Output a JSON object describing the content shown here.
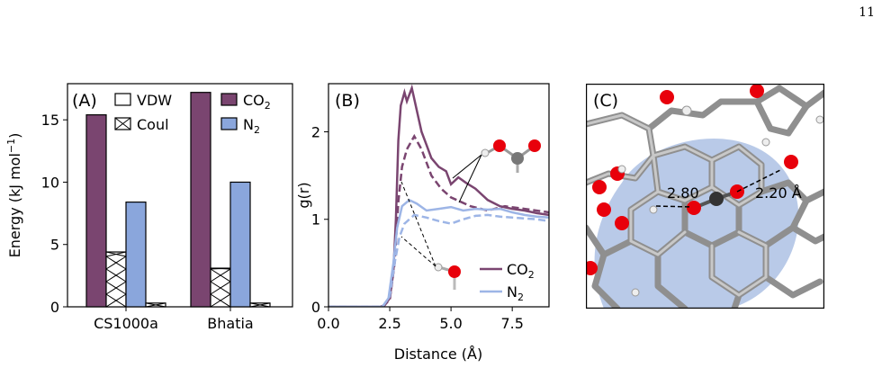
{
  "page_number": "11",
  "colors": {
    "co2": "#7a4570",
    "n2": "#8aa6dc",
    "co2_line": "#7a4570",
    "n2_line": "#9db5e6"
  },
  "panel_a": {
    "label": "(A)",
    "legend": {
      "vdw": "VDW",
      "coul": "Coul",
      "co2": "CO",
      "co2_sub": "2",
      "n2": "N",
      "n2_sub": "2"
    }
  },
  "panel_b": {
    "label": "(B)",
    "legend": {
      "co2": "CO",
      "co2_sub": "2",
      "n2": "N",
      "n2_sub": "2"
    }
  },
  "panel_c": {
    "label": "(C)",
    "dist1": "2.80",
    "dist2": "2.20 Å"
  },
  "chart_data": [
    {
      "type": "bar",
      "categories": [
        "CS1000a",
        "Bhatia"
      ],
      "series": [
        {
          "name": "CO2 VDW",
          "values": [
            15.4,
            17.2
          ]
        },
        {
          "name": "CO2 Coul",
          "values": [
            4.4,
            3.1
          ]
        },
        {
          "name": "N2 VDW",
          "values": [
            8.4,
            10.0
          ]
        },
        {
          "name": "N2 Coul",
          "values": [
            0.3,
            0.3
          ]
        }
      ],
      "ylabel": "Energy (kJ mol",
      "ylabel_sup": "−1",
      "ylabel_end": ")",
      "ylim": [
        0,
        17.9
      ],
      "yticks": [
        0,
        5,
        10,
        15
      ]
    },
    {
      "type": "line",
      "xlabel": "Distance (Å)",
      "ylabel": "g(r)",
      "xlim": [
        0,
        9
      ],
      "ylim": [
        0,
        2.55
      ],
      "xticks": [
        "0.0",
        "2.5",
        "5.0",
        "7.5"
      ],
      "xtick_values": [
        0,
        2.5,
        5,
        7.5
      ],
      "yticks": [
        0,
        1,
        2
      ],
      "series": [
        {
          "name": "CO2 solid",
          "style": "solid",
          "points": [
            [
              0,
              0
            ],
            [
              2.1,
              0
            ],
            [
              2.3,
              0.02
            ],
            [
              2.5,
              0.1
            ],
            [
              2.65,
              0.4
            ],
            [
              2.75,
              1.0
            ],
            [
              2.85,
              1.9
            ],
            [
              2.95,
              2.3
            ],
            [
              3.1,
              2.45
            ],
            [
              3.2,
              2.35
            ],
            [
              3.4,
              2.5
            ],
            [
              3.6,
              2.25
            ],
            [
              3.8,
              2.0
            ],
            [
              4.0,
              1.85
            ],
            [
              4.2,
              1.7
            ],
            [
              4.5,
              1.6
            ],
            [
              4.8,
              1.55
            ],
            [
              5.0,
              1.4
            ],
            [
              5.3,
              1.48
            ],
            [
              5.6,
              1.42
            ],
            [
              6.0,
              1.35
            ],
            [
              6.5,
              1.22
            ],
            [
              7.0,
              1.15
            ],
            [
              7.5,
              1.12
            ],
            [
              8.0,
              1.1
            ],
            [
              8.5,
              1.07
            ],
            [
              9,
              1.05
            ]
          ]
        },
        {
          "name": "CO2 dashed",
          "style": "dashed",
          "points": [
            [
              0,
              0
            ],
            [
              2.2,
              0
            ],
            [
              2.5,
              0.08
            ],
            [
              2.7,
              0.5
            ],
            [
              2.85,
              1.2
            ],
            [
              3.0,
              1.6
            ],
            [
              3.2,
              1.8
            ],
            [
              3.5,
              1.95
            ],
            [
              3.8,
              1.8
            ],
            [
              4.2,
              1.5
            ],
            [
              4.6,
              1.35
            ],
            [
              5.0,
              1.25
            ],
            [
              5.4,
              1.2
            ],
            [
              5.8,
              1.15
            ],
            [
              6.5,
              1.1
            ],
            [
              7.2,
              1.15
            ],
            [
              8.0,
              1.12
            ],
            [
              9,
              1.08
            ]
          ]
        },
        {
          "name": "N2 solid",
          "style": "solid",
          "points": [
            [
              0,
              0
            ],
            [
              2.2,
              0
            ],
            [
              2.45,
              0.1
            ],
            [
              2.65,
              0.5
            ],
            [
              2.8,
              0.9
            ],
            [
              3.0,
              1.15
            ],
            [
              3.3,
              1.22
            ],
            [
              3.6,
              1.18
            ],
            [
              4.0,
              1.1
            ],
            [
              4.5,
              1.12
            ],
            [
              5.0,
              1.14
            ],
            [
              5.5,
              1.1
            ],
            [
              6.0,
              1.12
            ],
            [
              6.5,
              1.11
            ],
            [
              7.0,
              1.12
            ],
            [
              7.5,
              1.08
            ],
            [
              8.0,
              1.05
            ],
            [
              8.5,
              1.03
            ],
            [
              9,
              1.02
            ]
          ]
        },
        {
          "name": "N2 dashed",
          "style": "dashed",
          "points": [
            [
              0,
              0
            ],
            [
              2.2,
              0
            ],
            [
              2.5,
              0.12
            ],
            [
              2.7,
              0.5
            ],
            [
              2.9,
              0.8
            ],
            [
              3.1,
              0.95
            ],
            [
              3.5,
              1.05
            ],
            [
              4.0,
              1.02
            ],
            [
              4.5,
              0.98
            ],
            [
              5.0,
              0.95
            ],
            [
              5.5,
              1.0
            ],
            [
              6.0,
              1.04
            ],
            [
              6.5,
              1.05
            ],
            [
              7.0,
              1.03
            ],
            [
              7.5,
              1.02
            ],
            [
              8.0,
              1.01
            ],
            [
              8.5,
              1.0
            ],
            [
              9,
              0.98
            ]
          ]
        }
      ]
    }
  ]
}
